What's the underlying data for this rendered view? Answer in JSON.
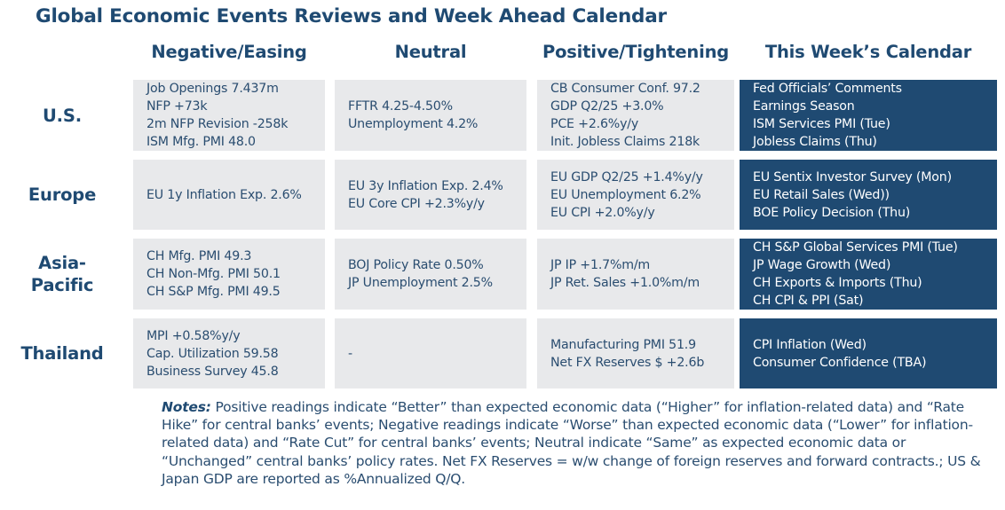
{
  "title": "Global Economic Events Reviews and Week Ahead Calendar",
  "columns": [
    "Negative/Easing",
    "Neutral",
    "Positive/Tightening",
    "This Week’s Calendar"
  ],
  "rows": [
    {
      "region": "U.S.",
      "negative": [
        "Job Openings 7.437m",
        "NFP +73k",
        "2m NFP Revision -258k",
        "ISM Mfg. PMI 48.0"
      ],
      "neutral": [
        "FFTR 4.25-4.50%",
        "Unemployment 4.2%"
      ],
      "positive": [
        "CB Consumer Conf. 97.2",
        "GDP Q2/25 +3.0%",
        "PCE +2.6%y/y",
        "Init. Jobless Claims 218k"
      ],
      "calendar": [
        "Fed Officials’ Comments",
        "Earnings Season",
        "ISM Services PMI (Tue)",
        "Jobless Claims (Thu)"
      ]
    },
    {
      "region": "Europe",
      "negative": [
        "EU 1y Inflation Exp. 2.6%"
      ],
      "neutral": [
        "EU 3y Inflation Exp. 2.4%",
        "EU Core CPI +2.3%y/y"
      ],
      "positive": [
        "EU GDP Q2/25 +1.4%y/y",
        "EU Unemployment 6.2%",
        "EU CPI +2.0%y/y"
      ],
      "calendar": [
        "EU Sentix Investor Survey (Mon)",
        "EU Retail Sales (Wed))",
        "BOE Policy Decision (Thu)"
      ]
    },
    {
      "region": "Asia-Pacific",
      "region_lines": [
        "Asia-",
        "Pacific"
      ],
      "negative": [
        "CH Mfg. PMI 49.3",
        "CH Non-Mfg. PMI 50.1",
        "CH S&P Mfg. PMI 49.5"
      ],
      "neutral": [
        "BOJ Policy Rate 0.50%",
        "JP Unemployment 2.5%"
      ],
      "positive": [
        "JP IP +1.7%m/m",
        "JP Ret. Sales +1.0%m/m"
      ],
      "calendar": [
        "CH S&P Global Services PMI (Tue)",
        "JP Wage Growth (Wed)",
        "CH Exports & Imports (Thu)",
        "CH CPI & PPI (Sat)"
      ]
    },
    {
      "region": "Thailand",
      "negative": [
        "MPI +0.58%y/y",
        "Cap. Utilization 59.58",
        "Business Survey 45.8"
      ],
      "neutral": [
        "-"
      ],
      "positive": [
        "Manufacturing PMI 51.9",
        "Net FX Reserves $ +2.6b"
      ],
      "calendar": [
        "CPI Inflation (Wed)",
        "Consumer Confidence (TBA)"
      ]
    }
  ],
  "notes": {
    "label": "Notes:",
    "text": " Positive readings indicate “Better” than expected economic data (“Higher” for inflation-related data) and “Rate Hike” for central banks’ events; Negative readings indicate “Worse” than expected economic data (“Lower” for inflation-related data) and “Rate Cut” for central banks’ events; Neutral indicate “Same” as expected economic data or “Unchanged” central banks’ policy rates. Net FX Reserves = w/w change of foreign reserves and forward contracts.; US & Japan GDP are reported as %Annualized Q/Q."
  },
  "colors": {
    "navy": "#1f4a72",
    "cell_gray": "#e8e9eb",
    "text": "#2a4d70"
  }
}
